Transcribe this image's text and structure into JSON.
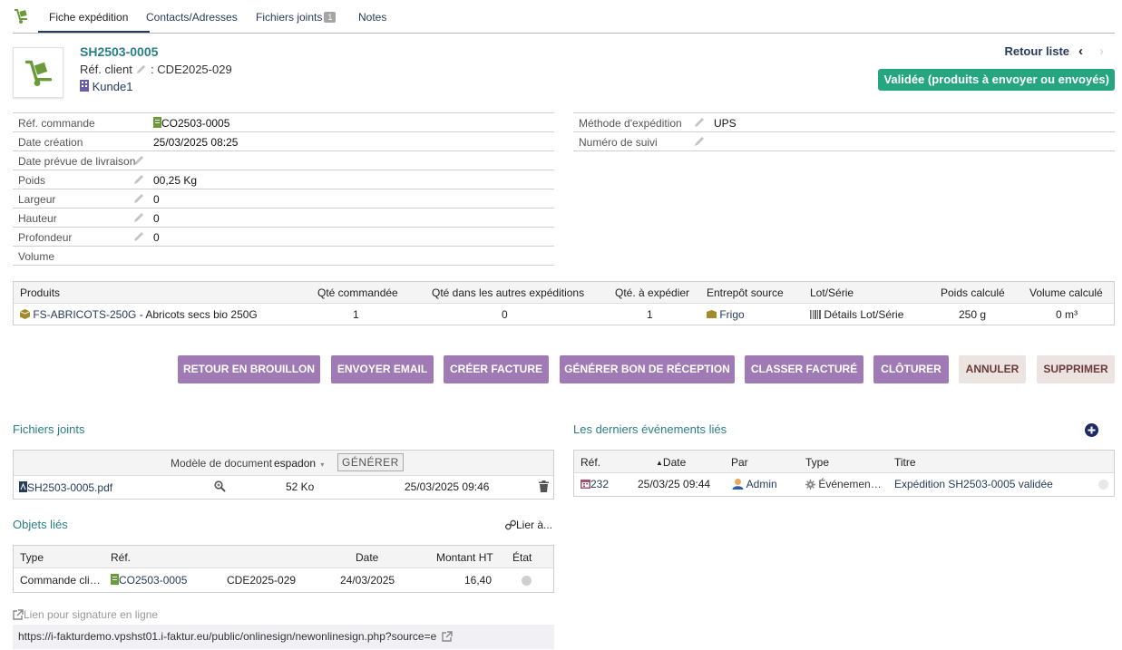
{
  "tabs": [
    {
      "label": "Fiche expédition",
      "active": true
    },
    {
      "label": "Contacts/Adresses"
    },
    {
      "label": "Fichiers joints",
      "badge": "1"
    },
    {
      "label": "Notes"
    }
  ],
  "header": {
    "ref": "SH2503-0005",
    "ref_client_label": "Réf. client",
    "ref_client_value": ": CDE2025-029",
    "thirdparty": "Kunde1",
    "back_list": "Retour liste",
    "status": "Validée (produits à envoyer ou envoyés)",
    "status_color": "#25a580"
  },
  "fields_left": [
    {
      "label": "Réf. commande",
      "value": "CO2503-0005",
      "link": true
    },
    {
      "label": "Date création",
      "value": "25/03/2025 08:25"
    },
    {
      "label": "Date prévue de livraison",
      "value": ""
    },
    {
      "label": "Poids",
      "value": "00,25 Kg"
    },
    {
      "label": "Largeur",
      "value": "0"
    },
    {
      "label": "Hauteur",
      "value": "0"
    },
    {
      "label": "Profondeur",
      "value": "0"
    },
    {
      "label": "Volume",
      "value": ""
    }
  ],
  "fields_right": [
    {
      "label": "Méthode d'expédition",
      "value": "UPS"
    },
    {
      "label": "Numéro de suivi",
      "value": ""
    }
  ],
  "products": {
    "headers": [
      "Produits",
      "Qté commandée",
      "Qté dans les autres expéditions",
      "Qté. à expédier",
      "Entrepôt source",
      "Lot/Série",
      "Poids calculé",
      "Volume calculé"
    ],
    "row": {
      "product_ref": "FS-ABRICOTS-250G",
      "product_label": " - Abricots secs bio 250G",
      "qty_ordered": "1",
      "qty_other": "0",
      "qty_ship": "1",
      "warehouse": "Frigo",
      "lot": "Détails Lot/Série",
      "weight": "250 g",
      "volume": "0 m³"
    }
  },
  "actions": [
    "Retour en brouillon",
    "Envoyer email",
    "Créer facture",
    "Générer bon de réception",
    "Classer facturé",
    "Clôturer",
    "Annuler",
    "Supprimer"
  ],
  "attached_files": {
    "title": "Fichiers joints",
    "template_label": "Modèle de document",
    "template_value": "espadon",
    "generate_label": "GÉNÉRER",
    "file_name": "SH2503-0005.pdf",
    "file_size": "52 Ko",
    "file_date": "25/03/2025 09:46"
  },
  "events": {
    "title": "Les derniers événements liés",
    "headers": [
      "Réf.",
      "Date",
      "Par",
      "Type",
      "Titre"
    ],
    "row": {
      "ref": "232",
      "date": "25/03/25 09:44",
      "by": "Admin",
      "type": "Événemen…",
      "title": "Expédition SH2503-0005 validée"
    }
  },
  "linked_objects": {
    "title": "Objets liés",
    "link_label": "Lier à...",
    "headers": [
      "Type",
      "Réf.",
      "Date",
      "Montant HT",
      "État"
    ],
    "row": {
      "type": "Commande cli…",
      "ref": "CO2503-0005",
      "ref_client": "CDE2025-029",
      "date": "24/03/2025",
      "amount": "16,40"
    }
  },
  "online_sign": {
    "label": "Lien pour signature en ligne",
    "url": "https://i-fakturdemo.vpshst01.i-faktur.eu/public/onlinesign/newonlinesign.php?source=e"
  }
}
